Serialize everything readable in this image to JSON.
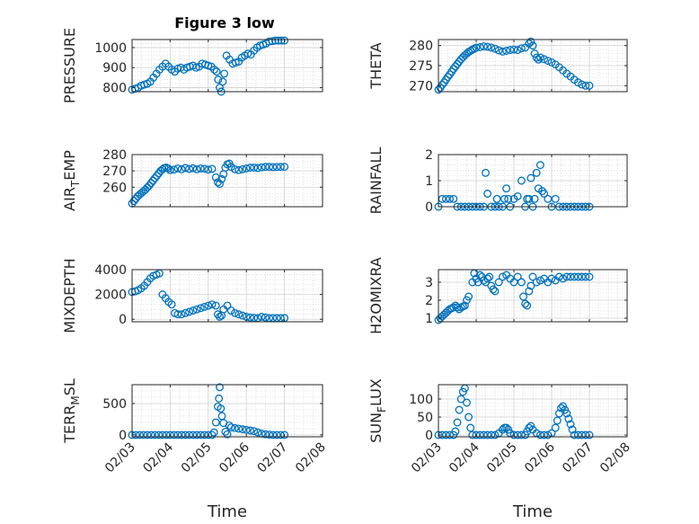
{
  "figure": {
    "title": "Figure 3 low",
    "marker_color": "#0072BD",
    "axis_color": "#262626",
    "grid_color": "#d0d0d0"
  },
  "chart_data": [
    {
      "type": "scatter",
      "ylabel": {
        "main": "PRESSURE",
        "sub": ""
      },
      "xlabel": "",
      "xlim": [
        0,
        5
      ],
      "ylim": [
        780,
        1040
      ],
      "yticks": [
        800,
        900,
        1000
      ],
      "xticks": [
        "02/03",
        "02/04",
        "02/05",
        "02/06",
        "02/07",
        "02/08"
      ],
      "show_xtick_labels": false,
      "x": [
        0,
        0.08,
        0.16,
        0.24,
        0.32,
        0.4,
        0.48,
        0.56,
        0.64,
        0.72,
        0.8,
        0.88,
        0.96,
        1.04,
        1.12,
        1.2,
        1.28,
        1.36,
        1.44,
        1.52,
        1.6,
        1.68,
        1.76,
        1.84,
        1.92,
        2.0,
        2.08,
        2.16,
        2.22,
        2.26,
        2.3,
        2.34,
        2.38,
        2.42,
        2.48,
        2.56,
        2.64,
        2.72,
        2.8,
        2.88,
        2.96,
        3.04,
        3.12,
        3.2,
        3.28,
        3.36,
        3.44,
        3.52,
        3.6,
        3.68,
        3.76,
        3.84,
        3.92,
        4.0
      ],
      "y": [
        790,
        795,
        800,
        810,
        815,
        820,
        830,
        850,
        870,
        890,
        905,
        920,
        905,
        890,
        880,
        895,
        900,
        890,
        900,
        905,
        910,
        900,
        905,
        920,
        915,
        910,
        905,
        890,
        880,
        840,
        800,
        780,
        830,
        870,
        960,
        940,
        920,
        925,
        930,
        950,
        960,
        970,
        965,
        985,
        1000,
        1010,
        1015,
        1020,
        1030,
        1032,
        1035,
        1035,
        1035,
        1035
      ]
    },
    {
      "type": "scatter",
      "ylabel": {
        "main": "THETA",
        "sub": ""
      },
      "xlabel": "",
      "xlim": [
        0,
        5
      ],
      "ylim": [
        268.5,
        281.5
      ],
      "yticks": [
        270,
        275,
        280
      ],
      "xticks": [
        "02/03",
        "02/04",
        "02/05",
        "02/06",
        "02/07",
        "02/08"
      ],
      "show_xtick_labels": false,
      "x": [
        0,
        0.05,
        0.1,
        0.15,
        0.2,
        0.25,
        0.3,
        0.35,
        0.4,
        0.45,
        0.5,
        0.55,
        0.6,
        0.65,
        0.7,
        0.75,
        0.8,
        0.85,
        0.9,
        0.95,
        1.0,
        1.1,
        1.2,
        1.3,
        1.4,
        1.5,
        1.6,
        1.7,
        1.8,
        1.9,
        2.0,
        2.1,
        2.2,
        2.3,
        2.4,
        2.45,
        2.5,
        2.55,
        2.6,
        2.65,
        2.7,
        2.8,
        2.9,
        3.0,
        3.1,
        3.2,
        3.3,
        3.4,
        3.5,
        3.6,
        3.7,
        3.8,
        3.9,
        4.0
      ],
      "y": [
        269,
        269.5,
        270.2,
        270.8,
        271.5,
        272.2,
        272.8,
        273.5,
        274.2,
        274.8,
        275.4,
        276,
        276.6,
        277.1,
        277.6,
        278,
        278.4,
        278.7,
        279,
        279.2,
        279.5,
        279.6,
        279.8,
        279.7,
        279.5,
        279.2,
        278.8,
        278.5,
        278.7,
        278.9,
        279,
        278.9,
        279.3,
        279.5,
        280.5,
        281,
        280,
        278,
        277,
        276.5,
        277,
        276.6,
        276.2,
        275.8,
        275.3,
        274.6,
        273.8,
        273,
        272.3,
        271.5,
        270.8,
        270.3,
        270,
        270
      ]
    },
    {
      "type": "scatter",
      "ylabel": {
        "main": "AIR",
        "sub": "T",
        "tail": "EMP"
      },
      "xlabel": "",
      "xlim": [
        0,
        5
      ],
      "ylim": [
        248,
        280
      ],
      "yticks": [
        260,
        270,
        280
      ],
      "xticks": [
        "02/03",
        "02/04",
        "02/05",
        "02/06",
        "02/07",
        "02/08"
      ],
      "show_xtick_labels": false,
      "x": [
        0,
        0.05,
        0.1,
        0.15,
        0.2,
        0.25,
        0.3,
        0.35,
        0.4,
        0.45,
        0.5,
        0.55,
        0.6,
        0.65,
        0.7,
        0.75,
        0.8,
        0.85,
        0.9,
        0.95,
        1.0,
        1.1,
        1.2,
        1.3,
        1.4,
        1.5,
        1.6,
        1.7,
        1.8,
        1.9,
        2.0,
        2.1,
        2.2,
        2.25,
        2.3,
        2.35,
        2.4,
        2.45,
        2.5,
        2.55,
        2.6,
        2.7,
        2.8,
        2.9,
        3.0,
        3.1,
        3.2,
        3.3,
        3.4,
        3.5,
        3.6,
        3.7,
        3.8,
        3.9,
        4.0
      ],
      "y": [
        250,
        251.5,
        253,
        254.5,
        255.5,
        256.5,
        257.5,
        258.5,
        259.8,
        261,
        262.5,
        264,
        265.5,
        267,
        268.5,
        270,
        271,
        271.8,
        272,
        271.5,
        270.5,
        270.8,
        271.5,
        271,
        271.8,
        271.2,
        271.6,
        271,
        271.5,
        271.3,
        270.8,
        271.2,
        266,
        263,
        262,
        265,
        268,
        272,
        274,
        274.5,
        272.5,
        271,
        270.5,
        271,
        271.5,
        272,
        272,
        271.8,
        272.2,
        272.5,
        272.5,
        272.3,
        272.4,
        272.5,
        272.5
      ]
    },
    {
      "type": "scatter",
      "ylabel": {
        "main": "RAINFALL",
        "sub": ""
      },
      "xlabel": "",
      "xlim": [
        0,
        5
      ],
      "ylim": [
        0,
        2
      ],
      "yticks": [
        0,
        1,
        2
      ],
      "xticks": [
        "02/03",
        "02/04",
        "02/05",
        "02/06",
        "02/07",
        "02/08"
      ],
      "show_xtick_labels": false,
      "x": [
        0,
        0.1,
        0.2,
        0.3,
        0.4,
        0.5,
        0.6,
        0.7,
        0.8,
        0.9,
        1.0,
        1.1,
        1.2,
        1.25,
        1.3,
        1.4,
        1.5,
        1.55,
        1.6,
        1.7,
        1.75,
        1.8,
        1.85,
        1.9,
        2.0,
        2.1,
        2.2,
        2.3,
        2.35,
        2.4,
        2.45,
        2.5,
        2.55,
        2.6,
        2.65,
        2.7,
        2.75,
        2.8,
        2.9,
        3.0,
        3.1,
        3.2,
        3.3,
        3.4,
        3.5,
        3.6,
        3.7,
        3.8,
        3.9,
        4.0
      ],
      "y": [
        0,
        0.3,
        0.3,
        0.3,
        0.3,
        0,
        0,
        0,
        0,
        0,
        0,
        0,
        0,
        1.3,
        0.5,
        0,
        0,
        0.3,
        0,
        0,
        0.3,
        0.7,
        0.3,
        0,
        0.3,
        0.4,
        1.0,
        0,
        0.3,
        0.3,
        1.1,
        0,
        0.3,
        1.3,
        0.7,
        1.6,
        0.6,
        0.5,
        0.3,
        0,
        0.3,
        0,
        0,
        0,
        0,
        0,
        0,
        0,
        0,
        0
      ]
    },
    {
      "type": "scatter",
      "ylabel": {
        "main": "MIXDEPTH",
        "sub": ""
      },
      "xlabel": "",
      "xlim": [
        0,
        5
      ],
      "ylim": [
        -200,
        4000
      ],
      "yticks": [
        0,
        2000,
        4000
      ],
      "xticks": [
        "02/03",
        "02/04",
        "02/05",
        "02/06",
        "02/07",
        "02/08"
      ],
      "show_xtick_labels": false,
      "x": [
        0,
        0.08,
        0.16,
        0.24,
        0.32,
        0.4,
        0.48,
        0.56,
        0.64,
        0.72,
        0.8,
        0.88,
        0.96,
        1.04,
        1.12,
        1.2,
        1.3,
        1.4,
        1.5,
        1.6,
        1.7,
        1.8,
        1.9,
        2.0,
        2.1,
        2.2,
        2.25,
        2.3,
        2.35,
        2.4,
        2.5,
        2.6,
        2.7,
        2.8,
        2.9,
        3.0,
        3.1,
        3.2,
        3.3,
        3.4,
        3.5,
        3.6,
        3.7,
        3.8,
        3.9,
        4.0
      ],
      "y": [
        2200,
        2250,
        2350,
        2500,
        2700,
        3000,
        3300,
        3500,
        3600,
        3700,
        2000,
        1700,
        1400,
        1200,
        500,
        400,
        400,
        500,
        600,
        700,
        800,
        900,
        1000,
        1100,
        1200,
        1100,
        400,
        200,
        300,
        800,
        1100,
        700,
        500,
        400,
        300,
        200,
        150,
        120,
        100,
        200,
        150,
        100,
        100,
        100,
        100,
        100
      ]
    },
    {
      "type": "scatter",
      "ylabel": {
        "main": "H2OMIXRA",
        "sub": ""
      },
      "xlabel": "",
      "xlim": [
        0,
        5
      ],
      "ylim": [
        0.8,
        3.7
      ],
      "yticks": [
        1,
        2,
        3
      ],
      "xticks": [
        "02/03",
        "02/04",
        "02/05",
        "02/06",
        "02/07",
        "02/08"
      ],
      "show_xtick_labels": false,
      "x": [
        0,
        0.05,
        0.1,
        0.15,
        0.2,
        0.25,
        0.3,
        0.35,
        0.4,
        0.45,
        0.5,
        0.55,
        0.6,
        0.65,
        0.7,
        0.75,
        0.8,
        0.9,
        0.95,
        1.0,
        1.05,
        1.1,
        1.15,
        1.2,
        1.25,
        1.3,
        1.35,
        1.4,
        1.45,
        1.5,
        1.6,
        1.7,
        1.8,
        1.9,
        2.0,
        2.1,
        2.2,
        2.25,
        2.3,
        2.35,
        2.4,
        2.45,
        2.5,
        2.6,
        2.7,
        2.8,
        2.9,
        3.0,
        3.1,
        3.2,
        3.3,
        3.4,
        3.5,
        3.6,
        3.7,
        3.8,
        3.9,
        4.0
      ],
      "y": [
        0.9,
        1.0,
        1.1,
        1.2,
        1.3,
        1.4,
        1.5,
        1.55,
        1.6,
        1.7,
        1.6,
        1.5,
        1.6,
        1.65,
        1.7,
        2.0,
        2.2,
        3.0,
        3.5,
        3.2,
        3.0,
        3.4,
        3.3,
        3.1,
        3.0,
        3.2,
        3.3,
        2.8,
        2.6,
        2.5,
        3.0,
        3.3,
        3.4,
        3.2,
        3.0,
        3.3,
        3.0,
        2.2,
        1.8,
        1.7,
        2.5,
        2.8,
        3.3,
        3.0,
        3.1,
        3.2,
        3.0,
        3.2,
        3.1,
        3.3,
        3.2,
        3.3,
        3.3,
        3.3,
        3.3,
        3.3,
        3.3,
        3.3
      ]
    },
    {
      "type": "scatter",
      "ylabel": {
        "main": "TERR",
        "sub": "M",
        "tail": "SL"
      },
      "xlabel": "Time",
      "xlim": [
        0,
        5
      ],
      "ylim": [
        -30,
        800
      ],
      "yticks": [
        0,
        500
      ],
      "xticks": [
        "02/03",
        "02/04",
        "02/05",
        "02/06",
        "02/07",
        "02/08"
      ],
      "show_xtick_labels": true,
      "x": [
        0,
        0.1,
        0.2,
        0.3,
        0.4,
        0.5,
        0.6,
        0.7,
        0.8,
        0.9,
        1.0,
        1.1,
        1.2,
        1.3,
        1.4,
        1.5,
        1.6,
        1.7,
        1.8,
        1.9,
        2.0,
        2.1,
        2.15,
        2.2,
        2.25,
        2.28,
        2.3,
        2.33,
        2.36,
        2.4,
        2.45,
        2.5,
        2.55,
        2.6,
        2.7,
        2.8,
        2.9,
        3.0,
        3.1,
        3.2,
        3.3,
        3.4,
        3.5,
        3.6,
        3.7,
        3.8,
        3.9,
        4.0
      ],
      "y": [
        0,
        0,
        0,
        0,
        0,
        0,
        0,
        0,
        0,
        0,
        0,
        0,
        0,
        0,
        0,
        0,
        0,
        0,
        0,
        0,
        0,
        0,
        40,
        200,
        450,
        580,
        760,
        420,
        300,
        190,
        50,
        10,
        150,
        120,
        110,
        100,
        90,
        80,
        70,
        60,
        40,
        20,
        10,
        5,
        0,
        0,
        0,
        0
      ]
    },
    {
      "type": "scatter",
      "ylabel": {
        "main": "SUN",
        "sub": "F",
        "tail": "LUX"
      },
      "xlabel": "Time",
      "xlim": [
        0,
        5
      ],
      "ylim": [
        -5,
        140
      ],
      "yticks": [
        0,
        50,
        100
      ],
      "xticks": [
        "02/03",
        "02/04",
        "02/05",
        "02/06",
        "02/07",
        "02/08"
      ],
      "show_xtick_labels": true,
      "x": [
        0,
        0.1,
        0.2,
        0.3,
        0.4,
        0.45,
        0.5,
        0.55,
        0.6,
        0.65,
        0.7,
        0.75,
        0.8,
        0.85,
        0.9,
        1.0,
        1.1,
        1.2,
        1.3,
        1.4,
        1.5,
        1.6,
        1.7,
        1.75,
        1.8,
        1.85,
        1.9,
        2.0,
        2.1,
        2.2,
        2.3,
        2.35,
        2.4,
        2.45,
        2.5,
        2.6,
        2.7,
        2.8,
        2.9,
        3.0,
        3.1,
        3.15,
        3.2,
        3.25,
        3.3,
        3.35,
        3.4,
        3.45,
        3.5,
        3.55,
        3.6,
        3.7,
        3.8,
        3.9,
        4.0
      ],
      "y": [
        0,
        0,
        0,
        0,
        0,
        10,
        35,
        70,
        100,
        120,
        130,
        90,
        50,
        20,
        0,
        0,
        0,
        0,
        0,
        0,
        0,
        5,
        15,
        20,
        20,
        15,
        5,
        0,
        0,
        0,
        0,
        10,
        20,
        25,
        15,
        5,
        0,
        0,
        0,
        5,
        20,
        40,
        60,
        75,
        80,
        70,
        60,
        45,
        30,
        15,
        0,
        0,
        0,
        0,
        0
      ]
    }
  ]
}
